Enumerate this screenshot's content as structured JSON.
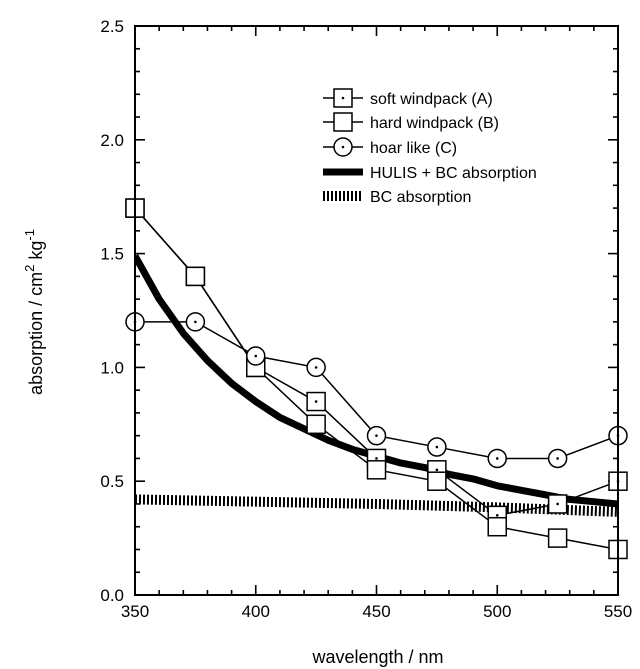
{
  "chart_data": {
    "type": "line",
    "xlabel": "wavelength / nm",
    "ylabel_main": "absorption / cm",
    "ylabel_sup1": "2",
    "ylabel_mid": " kg",
    "ylabel_sup2": "-1",
    "xlim": [
      350,
      550
    ],
    "ylim": [
      0.0,
      2.5
    ],
    "x_ticks": [
      350,
      400,
      450,
      500,
      550
    ],
    "x_tick_labels": [
      "350",
      "400",
      "450",
      "500",
      "550"
    ],
    "y_ticks": [
      0.0,
      0.5,
      1.0,
      1.5,
      2.0,
      2.5
    ],
    "y_tick_labels": [
      "0.0",
      "0.5",
      "1.0",
      "1.5",
      "2.0",
      "2.5"
    ],
    "legend_position": "top-right",
    "series": [
      {
        "name": "soft windpack (A)",
        "marker": "square-dot",
        "x": [
          350,
          375,
          400,
          425,
          450,
          475,
          500,
          525,
          550
        ],
        "y": [
          1.7,
          1.4,
          1.0,
          0.85,
          0.6,
          0.55,
          0.35,
          0.4,
          0.5
        ]
      },
      {
        "name": "hard windpack (B)",
        "marker": "square",
        "x": [
          350,
          375,
          400,
          425,
          450,
          475,
          500,
          525,
          550
        ],
        "y": [
          1.7,
          1.4,
          1.0,
          0.75,
          0.55,
          0.5,
          0.3,
          0.25,
          0.2
        ]
      },
      {
        "name": "hoar like (C)",
        "marker": "circle-dot",
        "x": [
          350,
          375,
          400,
          425,
          450,
          475,
          500,
          525,
          550
        ],
        "y": [
          1.2,
          1.2,
          1.05,
          1.0,
          0.7,
          0.65,
          0.6,
          0.6,
          0.7
        ]
      },
      {
        "name": "HULIS + BC absorption",
        "style": "thick",
        "x": [
          350,
          360,
          370,
          380,
          390,
          400,
          410,
          420,
          430,
          440,
          450,
          460,
          470,
          480,
          490,
          500,
          510,
          520,
          530,
          540,
          550
        ],
        "y": [
          1.49,
          1.3,
          1.15,
          1.03,
          0.93,
          0.85,
          0.78,
          0.73,
          0.68,
          0.64,
          0.61,
          0.58,
          0.56,
          0.53,
          0.51,
          0.48,
          0.46,
          0.44,
          0.42,
          0.41,
          0.4
        ]
      },
      {
        "name": "BC absorption",
        "style": "hatched",
        "x": [
          350,
          400,
          450,
          500,
          550
        ],
        "y": [
          0.42,
          0.41,
          0.4,
          0.385,
          0.365
        ]
      }
    ]
  }
}
